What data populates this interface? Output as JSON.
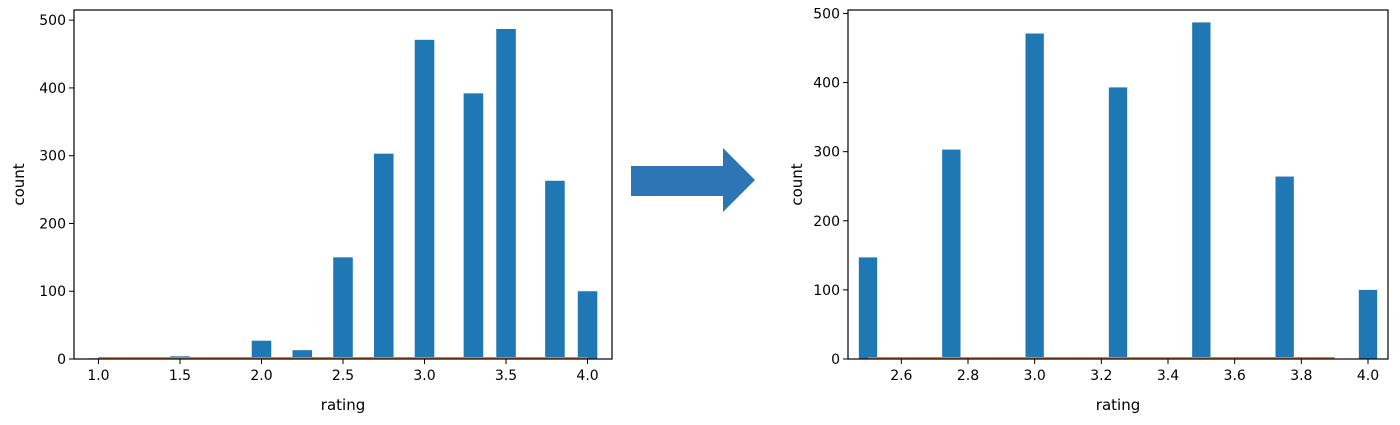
{
  "chart_data": [
    {
      "type": "bar",
      "xlabel": "rating",
      "ylabel": "count",
      "xlim": [
        0.85,
        4.15
      ],
      "ylim": [
        0,
        515
      ],
      "xticks": [
        "1.0",
        "1.5",
        "2.0",
        "2.5",
        "3.0",
        "3.5",
        "4.0"
      ],
      "yticks": [
        "0",
        "100",
        "200",
        "300",
        "400",
        "500"
      ],
      "bar_color": "#1f77b4",
      "bar_width": 0.12,
      "x": [
        1.0,
        1.5,
        2.0,
        2.25,
        2.5,
        2.75,
        3.0,
        3.3,
        3.5,
        3.8,
        4.0
      ],
      "values": [
        1,
        4,
        27,
        13,
        150,
        303,
        471,
        392,
        487,
        263,
        100
      ],
      "grid": false,
      "baseline_line": {
        "from": 1.0,
        "to": 4.0,
        "color": "#e07b39"
      }
    },
    {
      "type": "bar",
      "xlabel": "rating",
      "ylabel": "count",
      "xlim": [
        2.44,
        4.06
      ],
      "ylim": [
        0,
        505
      ],
      "xticks": [
        "2.6",
        "2.8",
        "3.0",
        "3.2",
        "3.4",
        "3.6",
        "3.8",
        "4.0"
      ],
      "yticks": [
        "0",
        "100",
        "200",
        "300",
        "400",
        "500"
      ],
      "bar_color": "#1f77b4",
      "bar_width": 0.055,
      "x": [
        2.5,
        2.75,
        3.0,
        3.25,
        3.5,
        3.75,
        4.0
      ],
      "values": [
        147,
        303,
        471,
        393,
        487,
        264,
        100
      ],
      "grid": false,
      "baseline_line": {
        "from": 2.5,
        "to": 3.9,
        "color": "#e07b39"
      }
    }
  ],
  "arrow": {
    "color": "#2e75b6"
  }
}
